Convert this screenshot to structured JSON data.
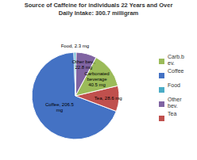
{
  "chart_data": {
    "type": "pie",
    "title": "Source of Caffeine for individuals 22 Years and Over\nDaily Intake: 300.7 milligram",
    "categories": [
      "Coffee",
      "Tea",
      "Carb.b\nev.",
      "Other\nbev.",
      "Food"
    ],
    "values": [
      206.5,
      28.6,
      40.5,
      22.8,
      2.3
    ],
    "value_labels": [
      "Coffee, 206.5\nmg",
      "Tea, 28.6 mg",
      "Carbonated\nbeverage\n40.5 mg",
      "Other bev.,\n22.8 mg",
      "Food, 2.3 mg"
    ],
    "colors": [
      "#4472C4",
      "#C0504D",
      "#9BBB59",
      "#8064A2",
      "#4BACC6"
    ],
    "data_labels": true,
    "legend": "right"
  }
}
